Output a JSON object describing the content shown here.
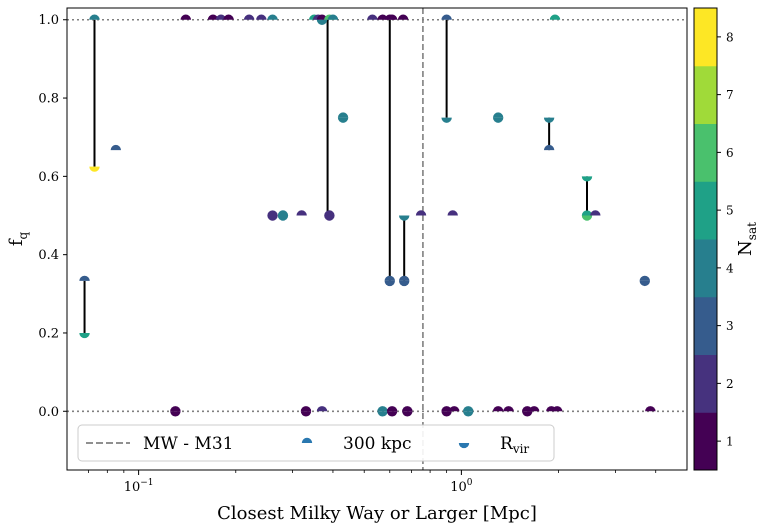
{
  "chart_data": {
    "type": "scatter",
    "xlabel": "Closest Milky Way or Larger [Mpc]",
    "ylabel": "f",
    "ylabel_sub": "q",
    "x_scale": "log",
    "xlim": [
      0.06,
      5.0
    ],
    "ylim": [
      -0.15,
      1.03
    ],
    "x_major_ticks": [
      {
        "value": 0.1,
        "base": "10",
        "exp": "−1"
      },
      {
        "value": 1.0,
        "base": "10",
        "exp": "0"
      }
    ],
    "y_ticks": [
      0.0,
      0.2,
      0.4,
      0.6,
      0.8,
      1.0
    ],
    "y_tick_labels": [
      "0.0",
      "0.2",
      "0.4",
      "0.6",
      "0.8",
      "1.0"
    ],
    "hlines": [
      0.0,
      1.0
    ],
    "vline": {
      "x": 0.76,
      "label": "MW - M31",
      "color": "#808080"
    },
    "colorbar": {
      "label": "N",
      "label_sub": "sat",
      "min": 0.5,
      "max": 8.5,
      "ticks": [
        "1",
        "2",
        "3",
        "4",
        "5",
        "6",
        "7",
        "8"
      ],
      "colors": [
        "#440154",
        "#482878",
        "#3e4989",
        "#31688e",
        "#26828e",
        "#1f9e89",
        "#35b779",
        "#6ece58",
        "#b5de2b",
        "#fde725"
      ]
    },
    "legend": {
      "position": "lower-left",
      "entries": [
        {
          "kind": "dashed",
          "label": "MW - M31"
        },
        {
          "kind": "top-half",
          "label": "300 kpc"
        },
        {
          "kind": "bottom-half",
          "label": "R",
          "label_sub": "vir"
        }
      ]
    },
    "series": [
      {
        "name": "300 kpc",
        "marker": "top-half",
        "points": [
          {
            "x": 0.068,
            "y": 0.333,
            "n": 3
          },
          {
            "x": 0.073,
            "y": 1.0,
            "n": 4
          },
          {
            "x": 0.14,
            "y": 1.0,
            "n": 1
          },
          {
            "x": 0.17,
            "y": 1.0,
            "n": 1
          },
          {
            "x": 0.18,
            "y": 1.0,
            "n": 2
          },
          {
            "x": 0.19,
            "y": 1.0,
            "n": 1
          },
          {
            "x": 0.22,
            "y": 1.0,
            "n": 2
          },
          {
            "x": 0.24,
            "y": 1.0,
            "n": 2
          },
          {
            "x": 0.26,
            "y": 1.0,
            "n": 4
          },
          {
            "x": 0.26,
            "y": 0.5,
            "n": 2
          },
          {
            "x": 0.28,
            "y": 0.5,
            "n": 4
          },
          {
            "x": 0.32,
            "y": 0.5,
            "n": 2
          },
          {
            "x": 0.35,
            "y": 1.0,
            "n": 5
          },
          {
            "x": 0.36,
            "y": 1.0,
            "n": 2
          },
          {
            "x": 0.37,
            "y": 1.0,
            "n": 1
          },
          {
            "x": 0.39,
            "y": 1.0,
            "n": 6
          },
          {
            "x": 0.4,
            "y": 1.0,
            "n": 4
          },
          {
            "x": 0.53,
            "y": 1.0,
            "n": 2
          },
          {
            "x": 0.57,
            "y": 1.0,
            "n": 1
          },
          {
            "x": 0.6,
            "y": 1.0,
            "n": 1
          },
          {
            "x": 0.61,
            "y": 1.0,
            "n": 1
          },
          {
            "x": 0.66,
            "y": 1.0,
            "n": 1
          },
          {
            "x": 0.665,
            "y": 0.333,
            "n": 3
          },
          {
            "x": 0.6,
            "y": 0.333,
            "n": 3
          },
          {
            "x": 0.75,
            "y": 0.5,
            "n": 2
          },
          {
            "x": 0.9,
            "y": 1.0,
            "n": 3
          },
          {
            "x": 0.94,
            "y": 0.5,
            "n": 2
          },
          {
            "x": 1.3,
            "y": 0.75,
            "n": 4
          },
          {
            "x": 1.95,
            "y": 1.0,
            "n": 5
          },
          {
            "x": 1.87,
            "y": 0.667,
            "n": 3
          },
          {
            "x": 2.45,
            "y": 0.5,
            "n": 5
          },
          {
            "x": 2.6,
            "y": 0.5,
            "n": 2
          },
          {
            "x": 0.085,
            "y": 0.667,
            "n": 3
          },
          {
            "x": 0.39,
            "y": 0.5,
            "n": 2
          },
          {
            "x": 0.43,
            "y": 0.75,
            "n": 4
          },
          {
            "x": 3.7,
            "y": 0.333,
            "n": 3
          },
          {
            "x": 0.13,
            "y": 0.0,
            "n": 1
          },
          {
            "x": 0.33,
            "y": 0.0,
            "n": 1
          },
          {
            "x": 0.37,
            "y": 0.0,
            "n": 2
          },
          {
            "x": 0.57,
            "y": 0.0,
            "n": 4
          },
          {
            "x": 0.61,
            "y": 0.0,
            "n": 1
          },
          {
            "x": 0.68,
            "y": 0.0,
            "n": 1
          },
          {
            "x": 0.9,
            "y": 0.0,
            "n": 1
          },
          {
            "x": 0.95,
            "y": 0.0,
            "n": 1
          },
          {
            "x": 1.05,
            "y": 0.0,
            "n": 4
          },
          {
            "x": 1.3,
            "y": 0.0,
            "n": 1
          },
          {
            "x": 1.4,
            "y": 0.0,
            "n": 1
          },
          {
            "x": 1.6,
            "y": 0.0,
            "n": 1
          },
          {
            "x": 1.68,
            "y": 0.0,
            "n": 1
          },
          {
            "x": 1.9,
            "y": 0.0,
            "n": 1
          },
          {
            "x": 1.98,
            "y": 0.0,
            "n": 1
          },
          {
            "x": 3.85,
            "y": 0.0,
            "n": 1
          }
        ]
      },
      {
        "name": "R",
        "name_sub": "vir",
        "marker": "bottom-half",
        "points": [
          {
            "x": 0.068,
            "y": 0.2,
            "n": 5
          },
          {
            "x": 0.073,
            "y": 0.625,
            "n": 8
          },
          {
            "x": 0.26,
            "y": 0.5,
            "n": 2
          },
          {
            "x": 0.28,
            "y": 0.5,
            "n": 4
          },
          {
            "x": 0.37,
            "y": 1.0,
            "n": 4
          },
          {
            "x": 0.39,
            "y": 0.5,
            "n": 2
          },
          {
            "x": 0.43,
            "y": 0.75,
            "n": 4
          },
          {
            "x": 0.6,
            "y": 0.333,
            "n": 3
          },
          {
            "x": 0.665,
            "y": 0.5,
            "n": 4
          },
          {
            "x": 0.665,
            "y": 0.333,
            "n": 3
          },
          {
            "x": 0.9,
            "y": 0.75,
            "n": 4
          },
          {
            "x": 1.3,
            "y": 0.75,
            "n": 4
          },
          {
            "x": 1.87,
            "y": 0.75,
            "n": 4
          },
          {
            "x": 2.45,
            "y": 0.6,
            "n": 5
          },
          {
            "x": 2.45,
            "y": 0.5,
            "n": 6
          },
          {
            "x": 3.7,
            "y": 0.333,
            "n": 3
          },
          {
            "x": 0.13,
            "y": 0.0,
            "n": 1
          },
          {
            "x": 0.33,
            "y": 0.0,
            "n": 1
          },
          {
            "x": 0.57,
            "y": 0.0,
            "n": 4
          },
          {
            "x": 0.61,
            "y": 0.0,
            "n": 1
          },
          {
            "x": 0.68,
            "y": 0.0,
            "n": 1
          },
          {
            "x": 0.9,
            "y": 0.0,
            "n": 1
          },
          {
            "x": 1.05,
            "y": 0.0,
            "n": 4
          },
          {
            "x": 1.6,
            "y": 0.0,
            "n": 1
          }
        ]
      }
    ],
    "connectors": [
      {
        "x": 0.068,
        "y1": 0.333,
        "y2": 0.2
      },
      {
        "x": 0.073,
        "y1": 1.0,
        "y2": 0.625
      },
      {
        "x": 0.385,
        "y1": 1.0,
        "y2": 0.5
      },
      {
        "x": 0.6,
        "y1": 1.0,
        "y2": 0.333
      },
      {
        "x": 0.665,
        "y1": 0.5,
        "y2": 0.333
      },
      {
        "x": 0.9,
        "y1": 1.0,
        "y2": 0.75
      },
      {
        "x": 1.87,
        "y1": 0.75,
        "y2": 0.667
      },
      {
        "x": 2.45,
        "y1": 0.6,
        "y2": 0.5
      }
    ]
  }
}
